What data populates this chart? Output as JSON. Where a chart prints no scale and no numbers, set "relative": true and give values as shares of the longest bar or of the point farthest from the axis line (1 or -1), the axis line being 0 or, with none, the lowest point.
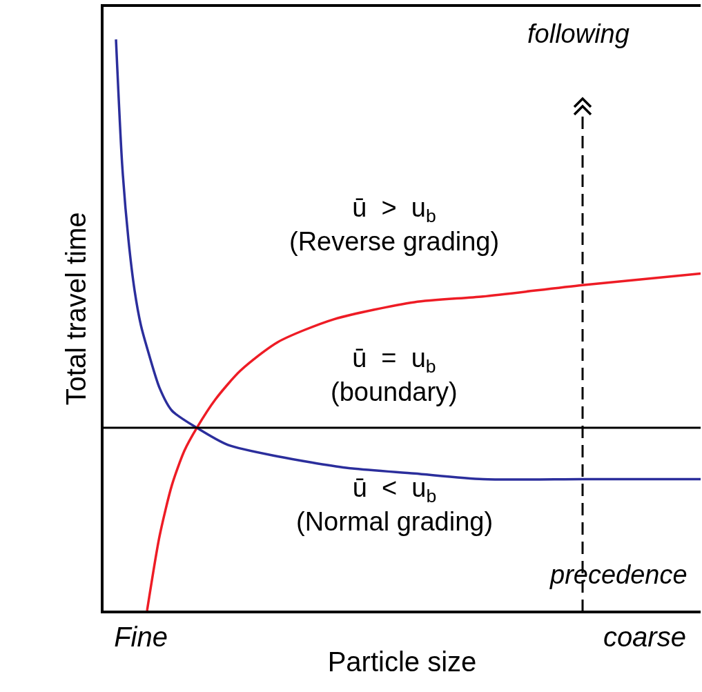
{
  "chart_data": {
    "type": "line",
    "relative": true,
    "xlabel": "Particle size",
    "ylabel": "Total travel time",
    "categories": [
      null,
      null,
      null,
      null,
      null,
      null,
      "Fine",
      null,
      null,
      null,
      null,
      null,
      null,
      null,
      null,
      null,
      null,
      null,
      null,
      null,
      null,
      null,
      null,
      null,
      null,
      null,
      null,
      null,
      null,
      null,
      null,
      null,
      null,
      null,
      null,
      null,
      null,
      null,
      null,
      null,
      null,
      null,
      null,
      null,
      null,
      null,
      null,
      null,
      null,
      null,
      null,
      null,
      null,
      null,
      null,
      null,
      null,
      null,
      null,
      null,
      null,
      null,
      null,
      null,
      null,
      null,
      null,
      null,
      null,
      null,
      null,
      null,
      null,
      null,
      null,
      null,
      null,
      null,
      null,
      null,
      null,
      null,
      null,
      null,
      null,
      null,
      null,
      "coarse",
      null,
      null,
      null,
      null,
      null,
      null,
      null,
      null,
      null
    ],
    "grid": false,
    "marker": "none",
    "line_style": "solid",
    "series": [
      {
        "color": "#2b2e9c",
        "values": [
          null,
          null,
          1.0,
          0.78,
          0.65,
          0.56,
          0.5,
          0.46,
          null,
          0.39,
          null,
          0.35,
          null,
          null,
          null,
          0.32,
          null,
          null,
          null,
          null,
          0.29,
          null,
          null,
          null,
          null,
          null,
          null,
          null,
          0.27,
          null,
          null,
          null,
          null,
          null,
          null,
          null,
          null,
          null,
          null,
          0.25,
          null,
          null,
          null,
          null,
          null,
          null,
          null,
          null,
          null,
          null,
          0.24,
          null,
          null,
          null,
          null,
          null,
          null,
          null,
          null,
          null,
          null,
          0.23,
          null,
          null,
          null,
          null,
          null,
          null,
          null,
          null,
          null,
          null,
          null,
          null,
          null,
          null,
          null,
          0.23,
          null,
          null,
          null,
          null,
          null,
          null,
          null,
          null,
          null,
          null,
          null,
          null,
          null,
          null,
          null,
          null,
          null,
          null,
          0.23
        ]
      },
      {
        "color": "#ee1c25",
        "values": [
          null,
          null,
          null,
          null,
          null,
          null,
          null,
          0,
          null,
          0.13,
          null,
          0.22,
          null,
          0.28,
          null,
          0.32,
          null,
          null,
          0.37,
          null,
          null,
          null,
          0.42,
          null,
          null,
          null,
          null,
          null,
          0.47,
          null,
          null,
          null,
          null,
          null,
          null,
          null,
          null,
          0.51,
          null,
          null,
          null,
          null,
          null,
          null,
          null,
          null,
          null,
          null,
          null,
          null,
          0.54,
          null,
          null,
          null,
          null,
          null,
          null,
          null,
          null,
          null,
          null,
          0.55,
          null,
          null,
          null,
          null,
          null,
          null,
          null,
          null,
          null,
          null,
          null,
          null,
          null,
          null,
          null,
          0.57,
          null,
          null,
          null,
          null,
          null,
          null,
          null,
          null,
          null,
          null,
          null,
          null,
          null,
          null,
          null,
          null,
          null,
          null,
          0.59
        ]
      }
    ],
    "ref_lines": [
      {
        "axis": "y",
        "value": 0.32,
        "color": "#000000",
        "line_style": "solid"
      }
    ],
    "annotations": [
      "ū  >  u$_{b}$\n(Reverse grading)",
      "ū  =  u$_{b}$\n(boundary)",
      "ū  <  u$_{b}$\n(Normal grading)",
      "following",
      "precedence"
    ]
  }
}
